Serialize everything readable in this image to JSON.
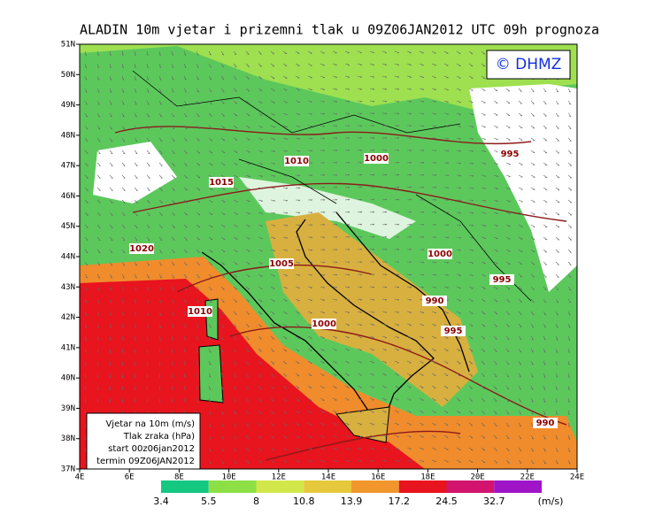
{
  "title": "ALADIN 10m vjetar i prizemni tlak u 09Z06JAN2012 UTC 09h prognoza",
  "copyright": "© DHMZ",
  "lat_labels": [
    "51N",
    "50N",
    "49N",
    "48N",
    "47N",
    "46N",
    "45N",
    "44N",
    "43N",
    "42N",
    "41N",
    "40N",
    "39N",
    "38N",
    "37N"
  ],
  "lon_labels": [
    "4E",
    "6E",
    "8E",
    "10E",
    "12E",
    "14E",
    "16E",
    "18E",
    "20E",
    "22E",
    "24E"
  ],
  "isobars": [
    "1010",
    "1000",
    "995",
    "1015",
    "1020",
    "1005",
    "1000",
    "995",
    "990",
    "1010",
    "1000",
    "995",
    "990"
  ],
  "legend_box": [
    "Vjetar na 10m (m/s)",
    "Tlak zraka (hPa)",
    "start 00z06jan2012",
    "termin 09Z06JAN2012"
  ],
  "colorbar": {
    "values": [
      "3.4",
      "5.5",
      "8",
      "10.8",
      "13.9",
      "17.2",
      "24.5",
      "32.7"
    ],
    "colors": [
      "#14c882",
      "#8ce046",
      "#d2e84a",
      "#e6c83c",
      "#f0962c",
      "#e8141e",
      "#d2146e",
      "#a014c8"
    ],
    "unit": "(m/s)"
  }
}
